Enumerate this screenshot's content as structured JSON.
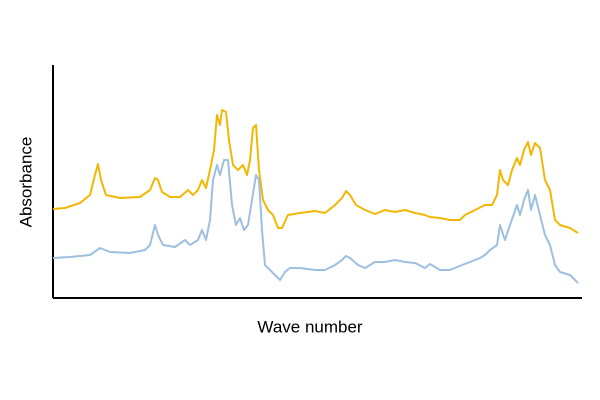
{
  "chart_data": {
    "type": "line",
    "x_label": "Wave number",
    "y_label": "Absorbance",
    "xlim": [
      0,
      529
    ],
    "ylim": [
      0,
      233
    ],
    "series": [
      {
        "color": "#f2b705",
        "x": [
          0,
          12,
          27,
          37,
          42,
          45,
          48,
          53,
          67,
          87,
          97,
          102,
          105,
          109,
          117,
          127,
          135,
          140,
          145,
          149,
          153,
          157,
          161,
          164,
          167,
          169,
          173,
          176,
          180,
          185,
          190,
          194,
          197,
          200,
          203,
          206,
          210,
          215,
          220,
          225,
          229,
          235,
          247,
          262,
          272,
          282,
          289,
          293,
          297,
          303,
          312,
          322,
          332,
          342,
          352,
          362,
          372,
          377,
          387,
          397,
          407,
          412,
          422,
          432,
          439,
          444,
          447,
          450,
          455,
          459,
          464,
          467,
          471,
          475,
          478,
          482,
          487,
          492,
          497,
          502,
          507,
          517,
          525
        ],
        "values": [
          89,
          90,
          95,
          103,
          123,
          134,
          118,
          103,
          100,
          101,
          108,
          120,
          118,
          106,
          101,
          101,
          108,
          103,
          108,
          118,
          110,
          128,
          148,
          183,
          173,
          188,
          186,
          158,
          133,
          128,
          133,
          123,
          138,
          170,
          173,
          128,
          98,
          88,
          83,
          70,
          70,
          83,
          85,
          87,
          85,
          93,
          100,
          107,
          103,
          93,
          88,
          84,
          88,
          86,
          88,
          85,
          83,
          81,
          80,
          78,
          78,
          83,
          88,
          93,
          93,
          103,
          128,
          118,
          113,
          128,
          140,
          133,
          148,
          156,
          143,
          155,
          150,
          118,
          108,
          78,
          73,
          70,
          65
        ]
      },
      {
        "color": "#9dbfe0",
        "x": [
          0,
          17,
          37,
          47,
          57,
          77,
          92,
          97,
          102,
          105,
          110,
          122,
          132,
          137,
          145,
          149,
          153,
          157,
          160,
          164,
          167,
          171,
          175,
          179,
          183,
          187,
          191,
          195,
          199,
          203,
          206,
          209,
          212,
          217,
          222,
          227,
          232,
          237,
          247,
          262,
          272,
          282,
          289,
          293,
          297,
          305,
          312,
          322,
          332,
          342,
          352,
          362,
          372,
          377,
          387,
          397,
          409,
          417,
          427,
          432,
          437,
          444,
          447,
          452,
          457,
          464,
          467,
          471,
          475,
          478,
          482,
          487,
          492,
          497,
          502,
          507,
          517,
          525
        ],
        "values": [
          40,
          41,
          43,
          50,
          46,
          45,
          48,
          53,
          73,
          63,
          53,
          51,
          58,
          53,
          58,
          68,
          58,
          78,
          118,
          133,
          123,
          138,
          138,
          93,
          73,
          80,
          68,
          73,
          98,
          123,
          118,
          68,
          33,
          28,
          23,
          18,
          26,
          30,
          30,
          28,
          28,
          33,
          38,
          42,
          40,
          33,
          30,
          36,
          36,
          38,
          36,
          35,
          30,
          34,
          28,
          28,
          33,
          36,
          40,
          43,
          48,
          53,
          73,
          58,
          73,
          93,
          83,
          98,
          108,
          88,
          103,
          83,
          63,
          53,
          33,
          26,
          23,
          15
        ]
      }
    ]
  }
}
